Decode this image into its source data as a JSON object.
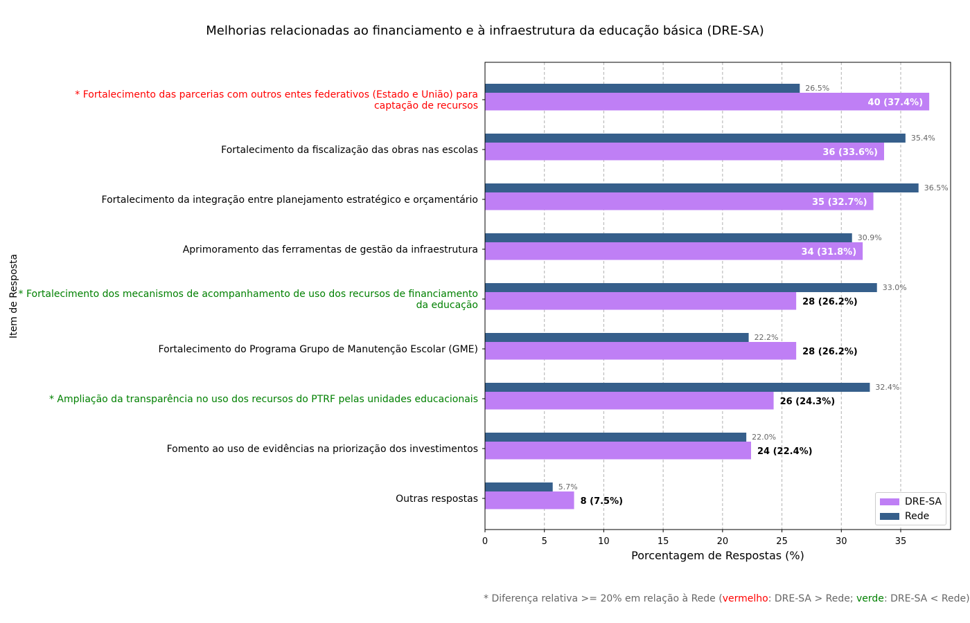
{
  "chart_data": {
    "type": "bar",
    "orientation": "horizontal",
    "title": "Melhorias relacionadas ao financiamento e à infraestrutura da educação básica (DRE-SA)",
    "xlabel": "Porcentagem de Respostas (%)",
    "ylabel": "Item de Resposta",
    "xlim": [
      0,
      39.2
    ],
    "xticks": [
      0,
      5,
      10,
      15,
      20,
      25,
      30,
      35
    ],
    "grid": "vertical dashed",
    "legend_position": "lower-right",
    "categories": [
      [
        "* Fortalecimento das parcerias com outros entes federativos (Estado e União) para",
        "captação de recursos"
      ],
      [
        "Fortalecimento da fiscalização das obras nas escolas"
      ],
      [
        "Fortalecimento da integração entre planejamento estratégico e orçamentário"
      ],
      [
        "Aprimoramento das ferramentas de gestão da infraestrutura"
      ],
      [
        "* Fortalecimento dos mecanismos de acompanhamento de uso dos recursos de financiamento",
        "da educação"
      ],
      [
        "Fortalecimento do Programa Grupo de Manutenção Escolar (GME)"
      ],
      [
        "* Ampliação da transparência no uso dos recursos do PTRF pelas unidades educacionais"
      ],
      [
        "Fomento ao uso de evidências na priorização dos investimentos"
      ],
      [
        "Outras respostas"
      ]
    ],
    "category_colors": [
      "#ff0000",
      "#000000",
      "#000000",
      "#000000",
      "#008000",
      "#000000",
      "#008000",
      "#000000",
      "#000000"
    ],
    "series": [
      {
        "name": "DRE-SA",
        "color": "#bf7ff5",
        "values": [
          37.4,
          33.6,
          32.7,
          31.8,
          26.2,
          26.2,
          24.3,
          22.4,
          7.5
        ],
        "labels": [
          "40 (37.4%)",
          "36 (33.6%)",
          "35 (32.7%)",
          "34 (31.8%)",
          "28 (26.2%)",
          "28 (26.2%)",
          "26 (24.3%)",
          "24 (22.4%)",
          "8 (7.5%)"
        ]
      },
      {
        "name": "Rede",
        "color": "#365f8b",
        "values": [
          26.5,
          35.4,
          36.5,
          30.9,
          33.0,
          22.2,
          32.4,
          22.0,
          5.7
        ],
        "labels": [
          "26.5%",
          "35.4%",
          "36.5%",
          "30.9%",
          "33.0%",
          "22.2%",
          "32.4%",
          "22.0%",
          "5.7%"
        ]
      }
    ]
  },
  "footnote": {
    "prefix": "* Diferença relativa >= 20% em relação à Rede (",
    "red_word": "vermelho",
    "middle": ": DRE-SA > Rede; ",
    "green_word": "verde",
    "suffix": ": DRE-SA < Rede)"
  }
}
